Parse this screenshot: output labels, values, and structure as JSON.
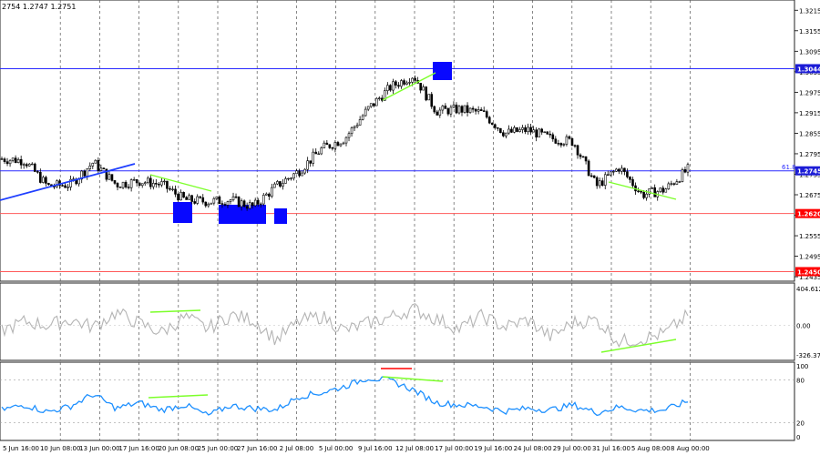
{
  "header": {
    "ohlc": "2754 1.2747 1.2751"
  },
  "price_axis": {
    "ticks": [
      "1.3215",
      "1.3155",
      "1.3095",
      "1.3035",
      "1.2975",
      "1.2915",
      "1.2855",
      "1.2795",
      "1.2735",
      "1.2675",
      "1.2615",
      "1.2555",
      "1.2495",
      "1.2435"
    ],
    "ylim": [
      1.2422,
      1.3245
    ]
  },
  "levels": [
    {
      "label": "1.3044",
      "price": 1.3044,
      "color": "#2a2aff",
      "badge": "#1c1cd6"
    },
    {
      "label": "1.2745",
      "price": 1.2745,
      "color": "#2a2aff",
      "badge": "#1c1cd6",
      "annotation": "61.8"
    },
    {
      "label": "1.2620",
      "price": 1.262,
      "color": "#ff5a5a",
      "badge": "#ff0000"
    },
    {
      "label": "1.2450",
      "price": 1.245,
      "color": "#ff5a5a",
      "badge": "#ff0000"
    }
  ],
  "cci_panel": {
    "ticks": [
      "404.6122",
      "0.00",
      "-326.377"
    ],
    "ylim": [
      -326.377,
      404.6122
    ]
  },
  "rsi_panel": {
    "ticks": [
      "100",
      "80",
      "20",
      "0"
    ],
    "ylim": [
      0,
      100
    ]
  },
  "time_axis": [
    "5 Jun 16:00",
    "10 Jun 08:00",
    "13 Jun 00:00",
    "17 Jun 16:00",
    "20 Jun 08:00",
    "25 Jun 00:00",
    "27 Jun 16:00",
    "2 Jul 08:00",
    "5 Jul 00:00",
    "9 Jul 16:00",
    "12 Jul 08:00",
    "17 Jul 00:00",
    "19 Jul 16:00",
    "24 Jul 08:00",
    "29 Jul 00:00",
    "31 Jul 16:00",
    "5 Aug 08:00",
    "8 Aug 00:00"
  ],
  "colors": {
    "candles": "#000000",
    "grid": "#555555",
    "sep": "#333333",
    "trendline": "#1f3fff",
    "divergence": "#7cff2a",
    "box": "#0808ff",
    "cci": "#b4b4b4",
    "rsi": "#1e90ff",
    "rsi_mark": "#ff0000",
    "rsi_level": "#a0a0a0"
  },
  "chart_data": [
    {
      "type": "candlestick",
      "instrument_quote": "2754 1.2747 1.2751",
      "x": [
        "5 Jun 16:00",
        "10 Jun 08:00",
        "13 Jun 00:00",
        "17 Jun 16:00",
        "20 Jun 08:00",
        "25 Jun 00:00",
        "27 Jun 16:00",
        "2 Jul 08:00",
        "5 Jul 00:00",
        "9 Jul 16:00",
        "12 Jul 08:00",
        "17 Jul 00:00",
        "19 Jul 16:00",
        "24 Jul 08:00",
        "29 Jul 00:00",
        "31 Jul 16:00",
        "5 Aug 08:00",
        "8 Aug 00:00"
      ],
      "close_path": [
        1.278,
        1.2775,
        1.27,
        1.2705,
        1.277,
        1.2705,
        1.2715,
        1.2705,
        1.266,
        1.2655,
        1.266,
        1.264,
        1.27,
        1.2745,
        1.281,
        1.284,
        1.2925,
        1.299,
        1.3025,
        1.292,
        1.2925,
        1.2915,
        1.2855,
        1.2865,
        1.284,
        1.283,
        1.27,
        1.2755,
        1.2675,
        1.269,
        1.2749
      ],
      "ylim": [
        1.2422,
        1.3245
      ],
      "levels": [
        1.3044,
        1.2745,
        1.262,
        1.245
      ]
    },
    {
      "type": "line",
      "name": "CCI",
      "ylim": [
        -326.377,
        404.6122
      ],
      "values": [
        -60,
        40,
        0,
        60,
        -20,
        140,
        20,
        -80,
        90,
        -40,
        110,
        60,
        -160,
        40,
        100,
        -60,
        20,
        90,
        180,
        70,
        -40,
        100,
        -20,
        60,
        -130,
        30,
        60,
        -180,
        -150,
        -90,
        110
      ]
    },
    {
      "type": "line",
      "name": "RSI",
      "ylim": [
        0,
        100
      ],
      "levels": [
        80,
        20
      ],
      "values": [
        38,
        45,
        35,
        43,
        60,
        40,
        48,
        38,
        45,
        30,
        44,
        40,
        38,
        57,
        62,
        71,
        83,
        79,
        66,
        48,
        45,
        43,
        36,
        40,
        38,
        45,
        34,
        42,
        37,
        38,
        50
      ]
    }
  ]
}
